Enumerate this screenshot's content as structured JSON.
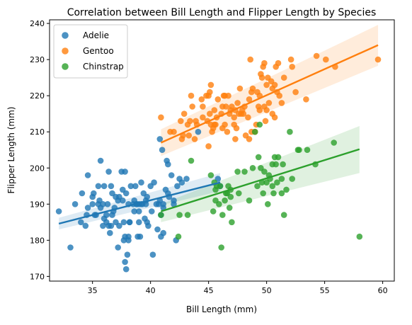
{
  "chart_data": {
    "type": "scatter",
    "title": "Correlation between Bill Length and Flipper Length by Species",
    "xlabel": "Bill Length (mm)",
    "ylabel": "Flipper Length (mm)",
    "xlim": [
      31.3,
      61.0
    ],
    "ylim": [
      168.7,
      241.0
    ],
    "xticks": [
      35,
      40,
      45,
      50,
      55,
      60
    ],
    "yticks": [
      170,
      180,
      190,
      200,
      210,
      220,
      230,
      240
    ],
    "legend_position": "top-left",
    "grid": false,
    "series": [
      {
        "name": "Adelie",
        "color": "#1f77b4",
        "regression": {
          "x0": 32.1,
          "y0": 184.6,
          "x1": 46.0,
          "y1": 196.0,
          "band_x0": 186.2,
          "band_y0": 183.0,
          "band_x1": 198.6,
          "band_y1": 193.6
        },
        "points": [
          [
            32.1,
            188
          ],
          [
            33.1,
            178
          ],
          [
            33.5,
            190
          ],
          [
            34.0,
            185
          ],
          [
            34.1,
            193
          ],
          [
            34.4,
            184
          ],
          [
            34.5,
            187
          ],
          [
            34.6,
            189
          ],
          [
            34.6,
            198
          ],
          [
            35.0,
            192
          ],
          [
            35.1,
            193
          ],
          [
            35.2,
            187
          ],
          [
            35.3,
            187
          ],
          [
            35.5,
            190
          ],
          [
            35.5,
            195
          ],
          [
            35.6,
            191
          ],
          [
            35.7,
            202
          ],
          [
            35.7,
            189
          ],
          [
            35.9,
            190
          ],
          [
            35.9,
            184
          ],
          [
            36.0,
            186
          ],
          [
            36.0,
            195
          ],
          [
            36.2,
            187
          ],
          [
            36.2,
            185
          ],
          [
            36.3,
            190
          ],
          [
            36.4,
            184
          ],
          [
            36.5,
            182
          ],
          [
            36.6,
            184
          ],
          [
            36.6,
            195
          ],
          [
            36.7,
            187
          ],
          [
            36.7,
            193
          ],
          [
            36.8,
            188
          ],
          [
            36.9,
            189
          ],
          [
            37.0,
            185
          ],
          [
            37.0,
            192
          ],
          [
            37.2,
            178
          ],
          [
            37.3,
            192
          ],
          [
            37.3,
            184
          ],
          [
            37.5,
            199
          ],
          [
            37.6,
            191
          ],
          [
            37.6,
            194
          ],
          [
            37.7,
            180
          ],
          [
            37.7,
            185
          ],
          [
            37.8,
            181
          ],
          [
            37.8,
            174
          ],
          [
            37.9,
            172
          ],
          [
            37.9,
            193
          ],
          [
            38.0,
            176
          ],
          [
            38.1,
            180
          ],
          [
            38.1,
            190
          ],
          [
            38.1,
            181
          ],
          [
            38.2,
            185
          ],
          [
            38.3,
            195
          ],
          [
            38.5,
            190
          ],
          [
            38.6,
            188
          ],
          [
            38.6,
            191
          ],
          [
            38.7,
            195
          ],
          [
            38.8,
            190
          ],
          [
            38.9,
            181
          ],
          [
            39.0,
            185
          ],
          [
            39.0,
            188
          ],
          [
            39.0,
            190
          ],
          [
            39.1,
            181
          ],
          [
            39.2,
            190
          ],
          [
            39.2,
            196
          ],
          [
            39.3,
            190
          ],
          [
            39.5,
            186
          ],
          [
            39.6,
            190
          ],
          [
            39.6,
            191
          ],
          [
            39.7,
            185
          ],
          [
            39.8,
            184
          ],
          [
            40.0,
            195
          ],
          [
            40.1,
            188
          ],
          [
            40.2,
            176
          ],
          [
            40.3,
            196
          ],
          [
            40.5,
            190
          ],
          [
            40.6,
            183
          ],
          [
            40.7,
            190
          ],
          [
            40.8,
            191
          ],
          [
            40.9,
            181
          ],
          [
            41.1,
            182
          ],
          [
            41.1,
            190
          ],
          [
            41.3,
            194
          ],
          [
            41.4,
            202
          ],
          [
            41.5,
            193
          ],
          [
            41.6,
            192
          ],
          [
            41.8,
            198
          ],
          [
            42.0,
            190
          ],
          [
            42.2,
            180
          ],
          [
            42.3,
            195
          ],
          [
            42.5,
            197
          ],
          [
            42.7,
            196
          ],
          [
            43.1,
            197
          ],
          [
            44.1,
            210
          ],
          [
            45.8,
            197
          ],
          [
            46.0,
            195
          ],
          [
            36.4,
            199
          ],
          [
            37.8,
            199
          ],
          [
            40.9,
            187
          ],
          [
            41.1,
            189
          ],
          [
            40.8,
            208
          ],
          [
            41.0,
            205
          ],
          [
            41.5,
            201
          ],
          [
            42.0,
            191
          ],
          [
            35.0,
            190
          ],
          [
            38.8,
            190
          ],
          [
            39.7,
            192
          ],
          [
            37.2,
            191
          ],
          [
            38.2,
            185
          ],
          [
            39.4,
            193
          ]
        ]
      },
      {
        "name": "Gentoo",
        "color": "#ff7f0e",
        "regression": {
          "x0": 40.9,
          "y0": 207.0,
          "x1": 59.6,
          "y1": 234.0,
          "band_x0": 203.3,
          "band_y0": 210.7,
          "band_x1": 228.3,
          "band_y1": 239.6
        },
        "points": [
          [
            40.9,
            214
          ],
          [
            41.7,
            210
          ],
          [
            42.0,
            210
          ],
          [
            42.6,
            213
          ],
          [
            42.7,
            208
          ],
          [
            42.8,
            209
          ],
          [
            42.9,
            215
          ],
          [
            43.2,
            212
          ],
          [
            43.3,
            209
          ],
          [
            43.4,
            213
          ],
          [
            43.5,
            220
          ],
          [
            43.6,
            217
          ],
          [
            43.8,
            208
          ],
          [
            44.0,
            212
          ],
          [
            44.4,
            219
          ],
          [
            44.5,
            214
          ],
          [
            44.9,
            213
          ],
          [
            45.0,
            220
          ],
          [
            45.1,
            215
          ],
          [
            45.2,
            223
          ],
          [
            45.2,
            212
          ],
          [
            45.3,
            210
          ],
          [
            45.4,
            211
          ],
          [
            45.5,
            212
          ],
          [
            45.5,
            216
          ],
          [
            45.7,
            214
          ],
          [
            45.8,
            219
          ],
          [
            46.1,
            215
          ],
          [
            46.2,
            217
          ],
          [
            46.3,
            220
          ],
          [
            46.4,
            212
          ],
          [
            46.5,
            217
          ],
          [
            46.6,
            210
          ],
          [
            46.8,
            215
          ],
          [
            46.9,
            216
          ],
          [
            47.2,
            214
          ],
          [
            47.3,
            216
          ],
          [
            47.4,
            211
          ],
          [
            47.5,
            218
          ],
          [
            47.6,
            215
          ],
          [
            47.7,
            222
          ],
          [
            47.8,
            215
          ],
          [
            48.1,
            217
          ],
          [
            48.2,
            209
          ],
          [
            48.4,
            214
          ],
          [
            48.5,
            219
          ],
          [
            48.6,
            230
          ],
          [
            48.7,
            210
          ],
          [
            48.8,
            222
          ],
          [
            49.0,
            210
          ],
          [
            49.1,
            212
          ],
          [
            49.2,
            221
          ],
          [
            49.3,
            217
          ],
          [
            49.4,
            216
          ],
          [
            49.5,
            226
          ],
          [
            49.6,
            225
          ],
          [
            49.8,
            229
          ],
          [
            49.9,
            213
          ],
          [
            50.0,
            223
          ],
          [
            50.1,
            225
          ],
          [
            50.2,
            218
          ],
          [
            50.4,
            224
          ],
          [
            50.5,
            222
          ],
          [
            50.7,
            223
          ],
          [
            50.8,
            228
          ],
          [
            51.1,
            220
          ],
          [
            51.3,
            218
          ],
          [
            51.5,
            225
          ],
          [
            52.1,
            230
          ],
          [
            52.2,
            228
          ],
          [
            52.5,
            221
          ],
          [
            53.4,
            219
          ],
          [
            54.3,
            231
          ],
          [
            55.1,
            230
          ],
          [
            55.9,
            228
          ],
          [
            59.6,
            230
          ],
          [
            44.5,
            217
          ],
          [
            45.1,
            221
          ],
          [
            46.7,
            220
          ],
          [
            47.0,
            217
          ],
          [
            47.2,
            212
          ],
          [
            48.0,
            215
          ],
          [
            48.7,
            221
          ],
          [
            49.8,
            217
          ],
          [
            50.5,
            215
          ],
          [
            45.0,
            206
          ],
          [
            46.2,
            211
          ],
          [
            47.3,
            208
          ],
          [
            48.5,
            208
          ],
          [
            50.0,
            216
          ],
          [
            51.0,
            229
          ],
          [
            50.9,
            221
          ],
          [
            49.7,
            228
          ],
          [
            46.4,
            220
          ],
          [
            44.8,
            220
          ],
          [
            43.9,
            213
          ],
          [
            47.9,
            216
          ],
          [
            49.4,
            220
          ],
          [
            50.7,
            214
          ],
          [
            45.6,
            212
          ]
        ]
      },
      {
        "name": "Chinstrap",
        "color": "#2ca02c",
        "regression": {
          "x0": 40.9,
          "y0": 188.0,
          "x1": 58.0,
          "y1": 205.2,
          "band_x0": 185.0,
          "band_y0": 190.0,
          "band_x1": 198.6,
          "band_y1": 211.6
        },
        "points": [
          [
            40.9,
            187
          ],
          [
            42.4,
            181
          ],
          [
            42.5,
            187
          ],
          [
            43.2,
            187
          ],
          [
            43.5,
            202
          ],
          [
            45.2,
            198
          ],
          [
            45.4,
            188
          ],
          [
            45.5,
            196
          ],
          [
            45.6,
            194
          ],
          [
            45.7,
            195
          ],
          [
            45.9,
            190
          ],
          [
            46.0,
            195
          ],
          [
            46.1,
            178
          ],
          [
            46.2,
            187
          ],
          [
            46.4,
            191
          ],
          [
            46.6,
            193
          ],
          [
            46.7,
            195
          ],
          [
            46.8,
            189
          ],
          [
            46.9,
            192
          ],
          [
            47.0,
            185
          ],
          [
            47.5,
            199
          ],
          [
            47.6,
            193
          ],
          [
            48.1,
            199
          ],
          [
            48.5,
            191
          ],
          [
            49.0,
            210
          ],
          [
            49.2,
            195
          ],
          [
            49.3,
            203
          ],
          [
            49.5,
            200
          ],
          [
            49.6,
            196
          ],
          [
            49.7,
            193
          ],
          [
            49.8,
            199
          ],
          [
            50.0,
            196
          ],
          [
            50.2,
            198
          ],
          [
            50.3,
            197
          ],
          [
            50.5,
            201
          ],
          [
            50.6,
            193
          ],
          [
            50.8,
            201
          ],
          [
            50.9,
            196
          ],
          [
            51.0,
            203
          ],
          [
            51.3,
            197
          ],
          [
            51.4,
            201
          ],
          [
            51.5,
            187
          ],
          [
            51.7,
            194
          ],
          [
            52.0,
            210
          ],
          [
            52.2,
            197
          ],
          [
            52.7,
            205
          ],
          [
            52.8,
            205
          ],
          [
            53.5,
            205
          ],
          [
            54.2,
            201
          ],
          [
            55.8,
            207
          ],
          [
            58.0,
            181
          ],
          [
            49.4,
            212
          ],
          [
            50.1,
            190
          ],
          [
            50.7,
            203
          ],
          [
            51.3,
            193
          ],
          [
            50.5,
            195
          ],
          [
            46.5,
            193
          ],
          [
            46.9,
            194
          ],
          [
            45.6,
            191
          ],
          [
            48.8,
            200
          ]
        ]
      }
    ]
  }
}
